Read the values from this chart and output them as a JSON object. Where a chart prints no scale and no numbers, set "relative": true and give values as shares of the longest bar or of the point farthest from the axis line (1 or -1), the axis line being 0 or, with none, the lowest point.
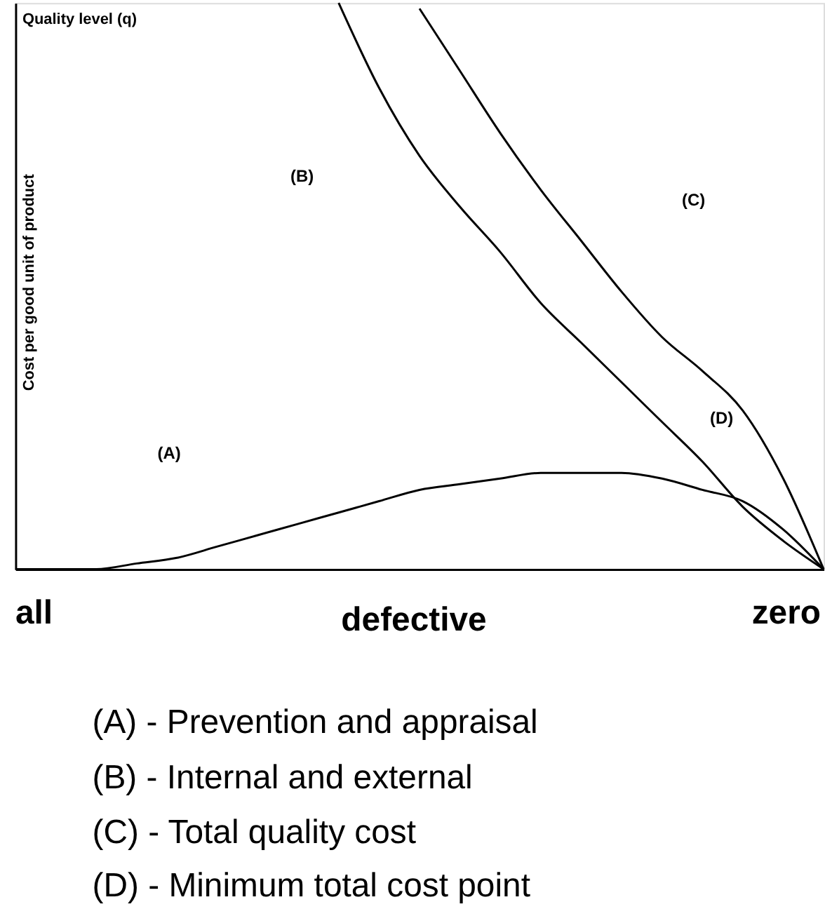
{
  "chart_data": {
    "type": "line",
    "relative": true,
    "title": "Quality level (q)",
    "ylabel": "Cost per good unit of product",
    "xlabel": "defective",
    "categories": [
      null,
      null,
      null,
      null,
      null,
      null,
      null,
      null,
      null,
      null,
      null,
      null,
      null,
      null,
      null,
      null,
      null,
      null,
      null,
      null,
      null
    ],
    "series": [
      {
        "color": "#000000",
        "values": [
          0,
          0,
          0,
          0.01,
          0.02,
          0.04,
          0.06,
          0.08,
          0.1,
          0.12,
          0.14,
          0.15,
          0.16,
          0.17,
          0.17,
          0.17,
          0.16,
          0.14,
          0.12,
          0.07,
          0
        ]
      },
      {
        "color": "#000000",
        "values": [
          null,
          null,
          null,
          null,
          null,
          null,
          null,
          null,
          1.0,
          0.85,
          0.73,
          0.64,
          0.56,
          0.47,
          0.4,
          0.33,
          0.26,
          0.19,
          0.11,
          0.05,
          0
        ]
      },
      {
        "color": "#000000",
        "values": [
          null,
          null,
          null,
          null,
          null,
          null,
          null,
          null,
          null,
          null,
          0.99,
          0.88,
          0.77,
          0.67,
          0.58,
          0.49,
          0.41,
          0.35,
          0.28,
          0.16,
          0
        ]
      }
    ],
    "annotations": [
      "all",
      "zero",
      "(A)",
      "(B)",
      "(C)",
      "(D)",
      "(A) - Prevention and appraisal",
      "(B) - Internal and external",
      "(C) - Total quality cost",
      "(D) - Minimum total cost point"
    ],
    "grid": false,
    "marker": "none",
    "line_style": "solid"
  }
}
